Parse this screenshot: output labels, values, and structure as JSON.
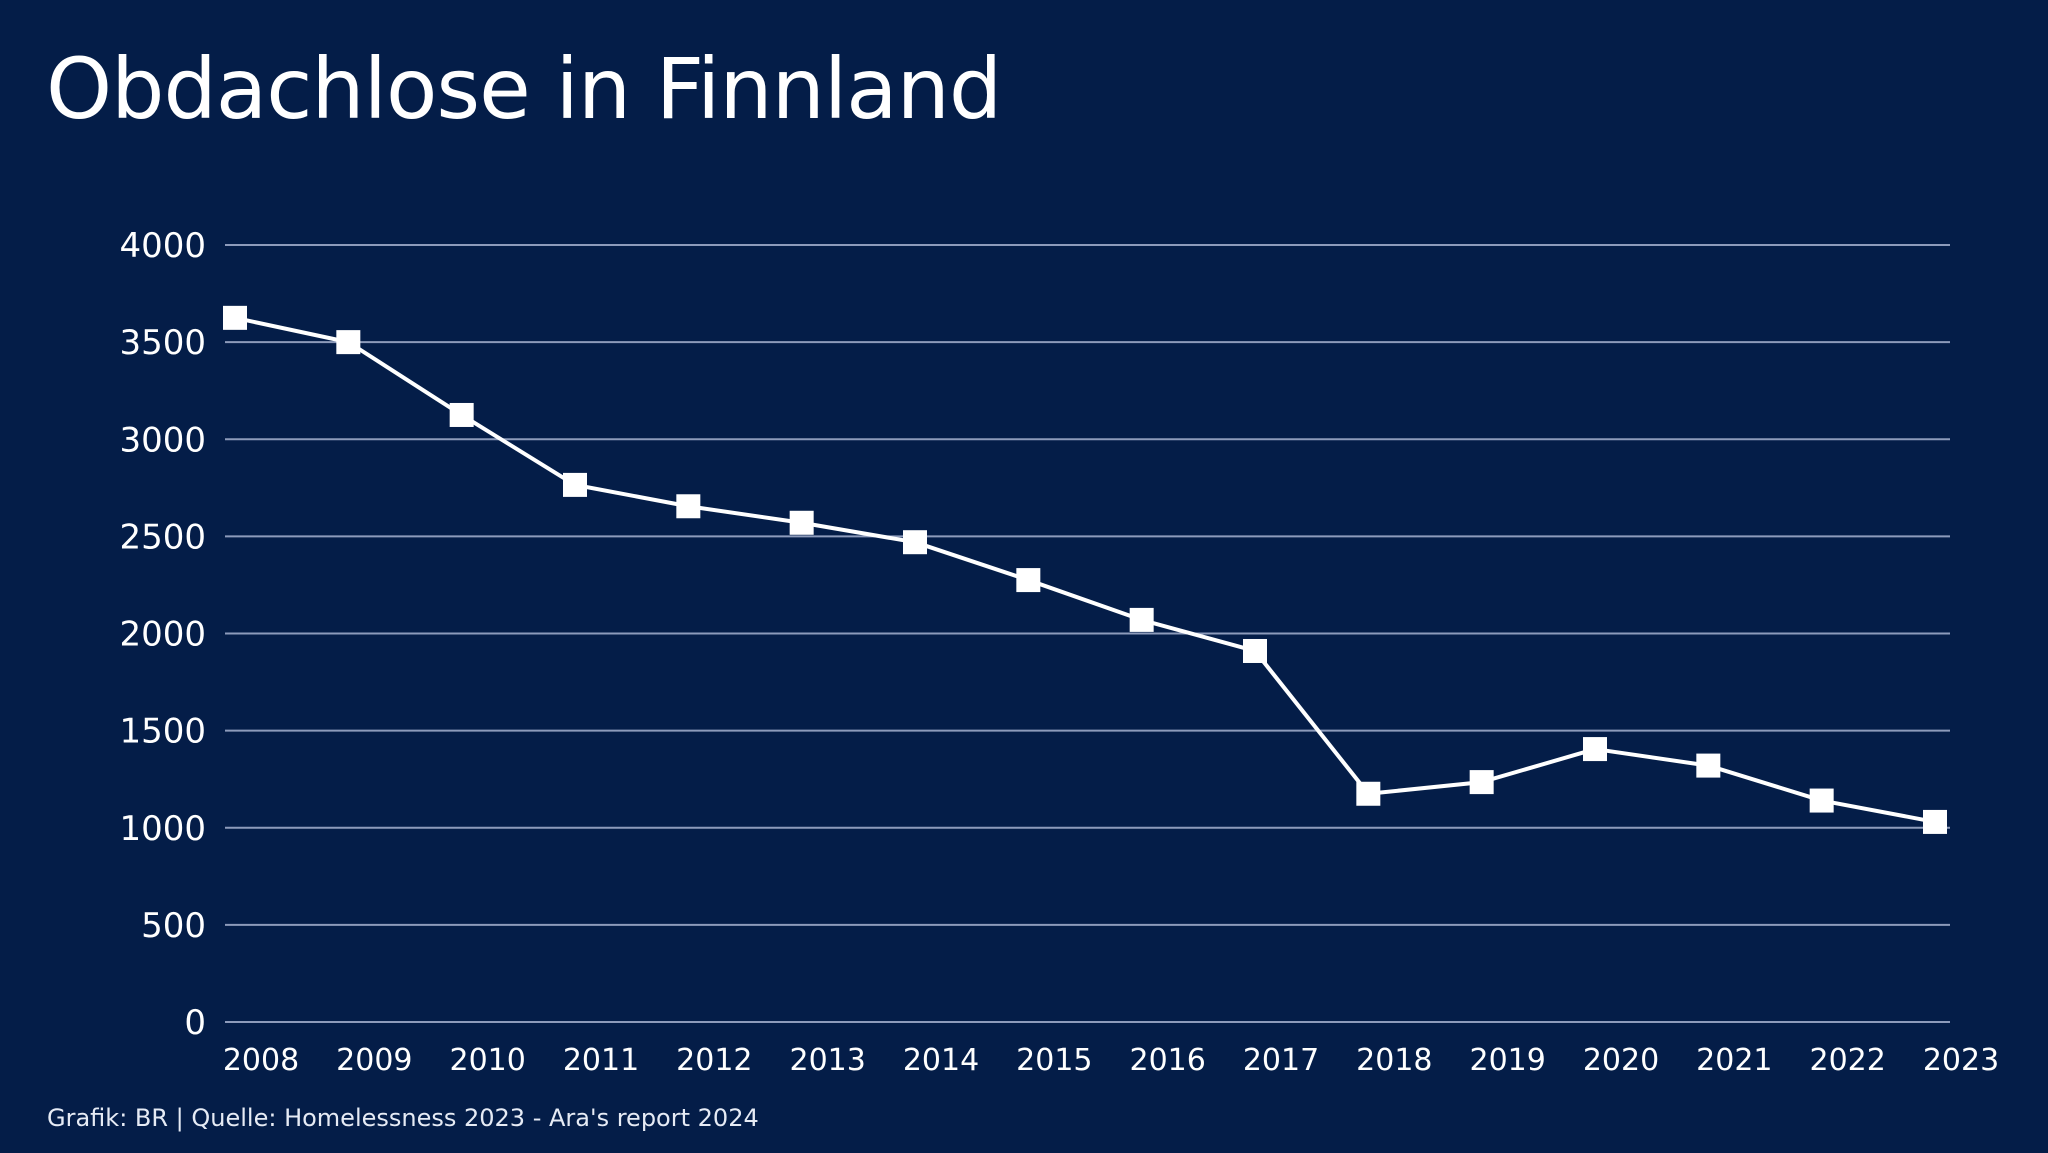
{
  "chart_data": {
    "type": "line",
    "title": "Obdachlose in Finnland",
    "xlabel": "",
    "ylabel": "",
    "categories": [
      "2008",
      "2009",
      "2010",
      "2011",
      "2012",
      "2013",
      "2014",
      "2015",
      "2016",
      "2017",
      "2018",
      "2019",
      "2020",
      "2021",
      "2022",
      "2023"
    ],
    "series": [
      {
        "values": [
          3625,
          3500,
          3125,
          2765,
          2655,
          2570,
          2470,
          2275,
          2070,
          1910,
          1175,
          1235,
          1405,
          1320,
          1140,
          1030
        ]
      }
    ],
    "ylim": [
      0,
      4000
    ],
    "yticks": [
      0,
      500,
      1000,
      1500,
      2000,
      2500,
      3000,
      3500,
      4000
    ],
    "grid": true,
    "legend": "none",
    "marker": "square",
    "colors": {
      "background": "#041d48",
      "line": "#ffffff",
      "gridline": "#8d9bbb",
      "text": "#ffffff"
    }
  },
  "footer": {
    "source": "Grafik: BR | Quelle: Homelessness 2023 - Ara's report 2024"
  }
}
